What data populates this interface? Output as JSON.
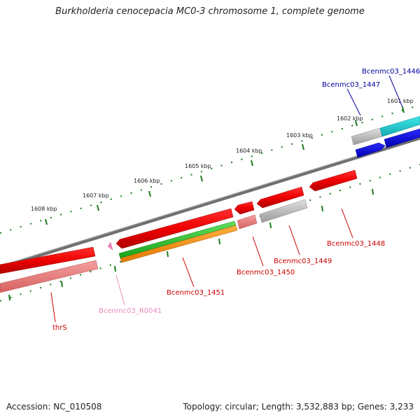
{
  "title": "Burkholderia cenocepacia MC0-3 chromosome 1, complete genome",
  "footer": {
    "accession": "Accession: NC_010508",
    "topology": "Topology: circular; Length: 3,532,883 bp; Genes: 3,233"
  },
  "ruler": [
    "1601 kbp",
    "1602 kbp",
    "1603 kbp",
    "1604 kbp",
    "1605 kbp",
    "1606 kbp",
    "1607 kbp",
    "1608 kbp"
  ],
  "genes": [
    {
      "label": "Bcenmc03_1446",
      "color": "#000099"
    },
    {
      "label": "Bcenmc03_1447",
      "color": "#000099"
    },
    {
      "label": "Bcenmc03_1448",
      "color": "#cc0000"
    },
    {
      "label": "Bcenmc03_1449",
      "color": "#cc0000"
    },
    {
      "label": "Bcenmc03_1450",
      "color": "#cc0000"
    },
    {
      "label": "Bcenmc03_1451",
      "color": "#cc0000"
    },
    {
      "label": "Bcenmc03_R0041",
      "color": "#ee88bb"
    },
    {
      "label": "thrS",
      "color": "#cc0000"
    }
  ]
}
